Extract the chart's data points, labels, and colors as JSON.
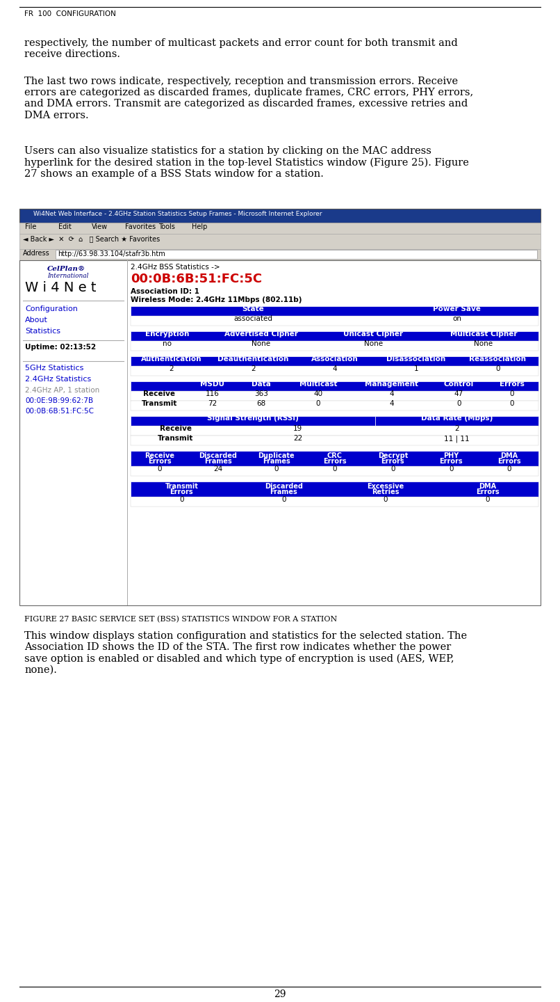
{
  "header_text": "FR  100  CONFIGURATION",
  "para1": "respectively, the number of multicast packets and error count for both transmit and\nreceive directions.",
  "para2": "The last two rows indicate, respectively, reception and transmission errors. Receive\nerrors are categorized as discarded frames, duplicate frames, CRC errors, PHY errors,\nand DMA errors. Transmit are categorized as discarded frames, excessive retries and\nDMA errors.",
  "para3": "Users can also visualize statistics for a station by clicking on the MAC address\nhyperlink for the desired station in the top-level Statistics window (Figure 25). Figure\n27 shows an example of a BSS Stats window for a station.",
  "figure_caption": "FIGURE 27 BASIC SERVICE SET (BSS) STATISTICS WINDOW FOR A STATION",
  "para4": "This window displays station configuration and statistics for the selected station. The\nAssociation ID shows the ID of the STA. The first row indicates whether the power\nsave option is enabled or disabled and which type of encryption is used (AES, WEP,\nnone).",
  "page_number": "29",
  "address_bar": "http://63.98.33.104/stafr3b.htm",
  "ie_window_title": "Wi4Net Web Interface - 2.4GHz Station Statistics Setup Frames - Microsoft Internet Explorer",
  "bss_title": "2.4GHz BSS Statistics ->",
  "mac_address": "00:0B:6B:51:FC:5C",
  "assoc_id": "Association ID: 1",
  "wireless_mode": "Wireless Mode: 2.4GHz 11Mbps (802.11b)",
  "uptime_text": "Uptime: 02:13:52",
  "left_links": [
    "Configuration",
    "About",
    "Statistics"
  ],
  "left_links2": [
    "5GHz Statistics",
    "2.4GHz Statistics"
  ],
  "left_links3": [
    "2.4GHz AP, 1 station",
    "00:0E:9B:99:62:7B",
    "00:0B:6B:51:FC:5C"
  ],
  "state_row_headers": [
    "State",
    "Power Save"
  ],
  "state_row_values": [
    "associated",
    "on"
  ],
  "enc_headers": [
    "Encryption",
    "Advertised Cipher",
    "Unicast Cipher",
    "Multicast Cipher"
  ],
  "enc_values": [
    "no",
    "None",
    "None",
    "None"
  ],
  "auth_headers": [
    "Authentication",
    "Deauthentication",
    "Association",
    "Disassociation",
    "Reassociation"
  ],
  "auth_values": [
    "2",
    "2",
    "4",
    "1",
    "0"
  ],
  "pkt_headers": [
    "",
    "MSDU",
    "Data",
    "Multicast",
    "Management",
    "Control",
    "Errors"
  ],
  "pkt_row1": [
    "Receive",
    "116",
    "363",
    "40",
    "4",
    "47",
    "0"
  ],
  "pkt_row2": [
    "Transmit",
    "72",
    "68",
    "0",
    "4",
    "0",
    "0"
  ],
  "sig_headers": [
    "Signal Strength (RSSI)",
    "Data Rate (Mbps)"
  ],
  "sig_row1": [
    "Receive",
    "19",
    "2"
  ],
  "sig_row2": [
    "Transmit",
    "22",
    "11 | 11"
  ],
  "rx_err_headers": [
    "Receive\nErrors",
    "Discarded\nFrames",
    "Duplicate\nFrames",
    "CRC\nErrors",
    "Decrypt\nErrors",
    "PHY\nErrors",
    "DMA\nErrors"
  ],
  "rx_err_values": [
    "0",
    "24",
    "0",
    "0",
    "0",
    "0",
    "0"
  ],
  "tx_err_headers": [
    "Transmit\nErrors",
    "Discarded\nFrames",
    "Excessive\nRetries",
    "DMA\nErrors"
  ],
  "tx_err_values": [
    "0",
    "0",
    "0",
    "0"
  ]
}
